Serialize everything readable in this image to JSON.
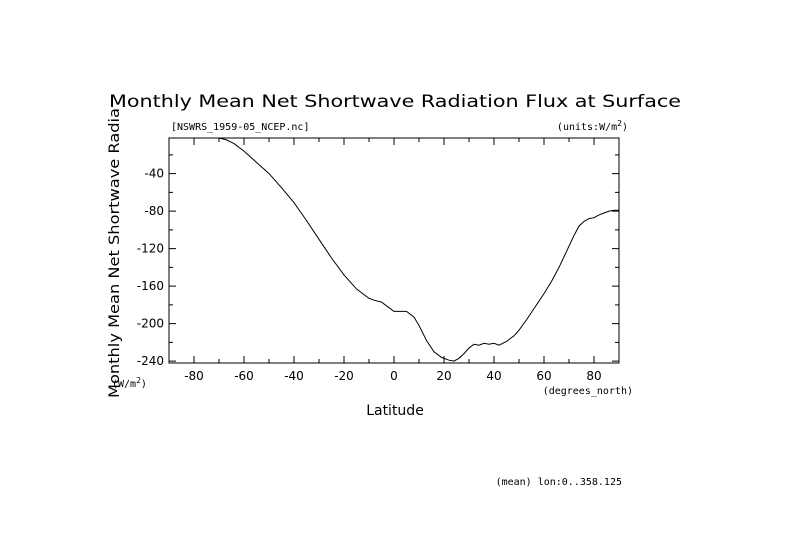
{
  "chart_data": {
    "type": "line",
    "title": "Monthly Mean Net Shortwave Radiation Flux at Surface",
    "file_label": "[NSWRS_1959-05_NCEP.nc]",
    "units_label": "(units:W/m^2)",
    "xlabel": "Latitude",
    "xunits": "(degrees_north)",
    "ylabel": "Monthly Mean Net Shortwave Radia",
    "yunits": "(W/m^2)",
    "footnote": "(mean) lon:0..358.125",
    "xlim": [
      -90,
      90
    ],
    "ylim": [
      -242,
      -2
    ],
    "xticks": [
      -80,
      -60,
      -40,
      -20,
      0,
      20,
      40,
      60,
      80
    ],
    "yticks": [
      -40,
      -80,
      -120,
      -160,
      -200,
      -240
    ],
    "grid": false,
    "series": [
      {
        "x": [
          -72,
          -70,
          -67,
          -64,
          -60,
          -55,
          -50,
          -45,
          -40,
          -35,
          -30,
          -25,
          -20,
          -15,
          -12,
          -10,
          -8,
          -5,
          -3,
          0,
          3,
          5,
          8,
          10,
          13,
          16,
          19,
          22,
          24,
          26,
          28,
          30,
          32,
          34,
          36,
          38,
          40,
          42,
          45,
          48,
          50,
          53,
          56,
          60,
          63,
          66,
          69,
          72,
          74,
          76,
          78,
          80,
          82,
          84,
          86,
          88,
          90
        ],
        "y": [
          -2,
          -2,
          -4,
          -8,
          -16,
          -28,
          -40,
          -55,
          -71,
          -90,
          -110,
          -130,
          -148,
          -163,
          -169,
          -173,
          -175,
          -177,
          -181,
          -187,
          -187,
          -187,
          -193,
          -202,
          -218,
          -230,
          -236,
          -239,
          -240,
          -237,
          -232,
          -226,
          -222,
          -223,
          -221,
          -222,
          -221,
          -223,
          -219,
          -213,
          -207,
          -196,
          -184,
          -168,
          -155,
          -140,
          -123,
          -106,
          -96,
          -91,
          -88,
          -87,
          -84,
          -82,
          -80,
          -79,
          -79
        ]
      }
    ]
  }
}
